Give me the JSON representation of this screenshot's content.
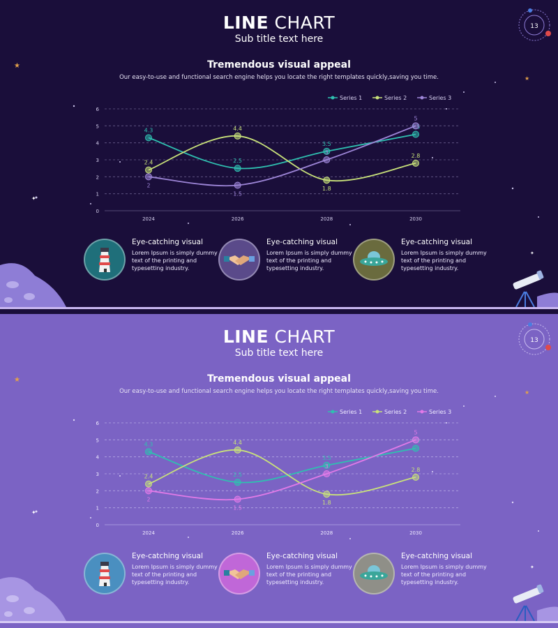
{
  "slides": [
    {
      "theme": "dark",
      "title_bold": "LINE",
      "title_rest": "CHART",
      "subtitle": "Sub title text here",
      "heading": "Tremendous visual appeal",
      "description": "Our easy-to-use and functional search engine helps you locate the right templates quickly,saving you time.",
      "badge_number": "13",
      "colors": {
        "background": "#1a0e3a",
        "series": [
          "#2fc0b0",
          "#c9e27a",
          "#9e86d8"
        ]
      },
      "features": [
        {
          "title": "Eye-catching visual",
          "text": "Lorem Ipsum is simply dummy text of the printing and typesetting industry.",
          "icon": "lighthouse-icon",
          "circle_color": "#1f6f7a"
        },
        {
          "title": "Eye-catching visual",
          "text": "Lorem Ipsum is simply dummy text of the printing and typesetting industry.",
          "icon": "handshake-icon",
          "circle_color": "#5a4a8a"
        },
        {
          "title": "Eye-catching visual",
          "text": "Lorem Ipsum is simply dummy text of the printing and typesetting industry.",
          "icon": "ufo-icon",
          "circle_color": "#6a6b3e"
        }
      ]
    },
    {
      "theme": "light",
      "title_bold": "LINE",
      "title_rest": "CHART",
      "subtitle": "Sub title text here",
      "heading": "Tremendous visual appeal",
      "description": "Our easy-to-use and functional search engine helps you locate the right templates quickly,saving you time.",
      "badge_number": "13",
      "colors": {
        "background": "#7b63c4",
        "series": [
          "#2fc0b0",
          "#c9e27a",
          "#e27ae8"
        ]
      },
      "features": [
        {
          "title": "Eye-catching visual",
          "text": "Lorem Ipsum is simply dummy text of the printing and typesetting industry.",
          "icon": "lighthouse-icon",
          "circle_color": "#4a8fc0"
        },
        {
          "title": "Eye-catching visual",
          "text": "Lorem Ipsum is simply dummy text of the printing and typesetting industry.",
          "icon": "handshake-icon",
          "circle_color": "#c067d8"
        },
        {
          "title": "Eye-catching visual",
          "text": "Lorem Ipsum is simply dummy text of the printing and typesetting industry.",
          "icon": "ufo-icon",
          "circle_color": "#8f8f88"
        }
      ]
    }
  ],
  "chart_data": [
    {
      "type": "line",
      "title": "",
      "xlabel": "",
      "ylabel": "",
      "categories": [
        "2024",
        "2026",
        "2028",
        "2030"
      ],
      "ylim": [
        0,
        6
      ],
      "yticks": [
        0,
        1,
        2,
        3,
        4,
        5,
        6
      ],
      "grid": true,
      "legend": "top-right",
      "series": [
        {
          "name": "Series 1",
          "values": [
            4.3,
            2.5,
            3.5,
            4.5
          ]
        },
        {
          "name": "Series 2",
          "values": [
            2.4,
            4.4,
            1.8,
            2.8
          ]
        },
        {
          "name": "Series 3",
          "values": [
            2,
            1.5,
            3,
            5
          ]
        }
      ]
    },
    {
      "type": "line",
      "title": "",
      "xlabel": "",
      "ylabel": "",
      "categories": [
        "2024",
        "2026",
        "2028",
        "2030"
      ],
      "ylim": [
        0,
        6
      ],
      "yticks": [
        0,
        1,
        2,
        3,
        4,
        5,
        6
      ],
      "grid": true,
      "legend": "top-right",
      "series": [
        {
          "name": "Series 1",
          "values": [
            4.3,
            2.5,
            3.5,
            4.5
          ]
        },
        {
          "name": "Series 2",
          "values": [
            2.4,
            4.4,
            1.8,
            2.8
          ]
        },
        {
          "name": "Series 3",
          "values": [
            2,
            1.5,
            3,
            5
          ]
        }
      ]
    }
  ]
}
